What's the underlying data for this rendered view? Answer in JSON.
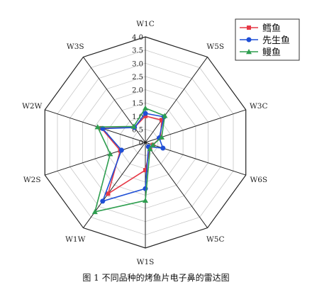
{
  "chart_data": {
    "type": "radar",
    "axes": [
      "W1C",
      "W3C",
      "W5C",
      "W1W",
      "W1S",
      "W2S",
      "W2W",
      "W3S",
      "W5S",
      "W6S"
    ],
    "axis_order_clockwise_from_top": [
      "W1C",
      "W5S",
      "W3C",
      "W6S",
      "W5C",
      "W1S",
      "W1W",
      "W2S",
      "W2W",
      "W3S"
    ],
    "rlim": [
      0,
      4.0
    ],
    "ticks": [
      "0",
      "0.5",
      "1.0",
      "1.5",
      "2.0",
      "2.5",
      "3.0",
      "3.5",
      "4.0"
    ],
    "grid": true,
    "legend_position": "top-right",
    "series": [
      {
        "name": "鳕鱼",
        "color": "#e63946",
        "marker": "square",
        "values": {
          "W1C": 1.0,
          "W5S": 1.05,
          "W3C": 0.6,
          "W6S": 0.3,
          "W5C": 0.3,
          "W1S": 1.05,
          "W1W": 2.4,
          "W2S": 1.0,
          "W2W": 1.75,
          "W3S": 0.7
        }
      },
      {
        "name": "先生鱼",
        "color": "#1f4fd6",
        "marker": "circle",
        "values": {
          "W1C": 1.1,
          "W5S": 1.2,
          "W3C": 0.55,
          "W6S": 0.7,
          "W5C": 0.2,
          "W1S": 1.75,
          "W1W": 2.75,
          "W2S": 0.95,
          "W2W": 1.7,
          "W3S": 0.7
        }
      },
      {
        "name": "鳗鱼",
        "color": "#2e9e4f",
        "marker": "triangle",
        "values": {
          "W1C": 1.3,
          "W5S": 1.25,
          "W3C": 0.65,
          "W6S": 0.3,
          "W5C": 0.3,
          "W1S": 2.2,
          "W1W": 3.25,
          "W2S": 1.4,
          "W2W": 1.9,
          "W3S": 0.75
        }
      }
    ]
  },
  "caption": "图 1   不同品种的烤鱼片电子鼻的雷达图"
}
